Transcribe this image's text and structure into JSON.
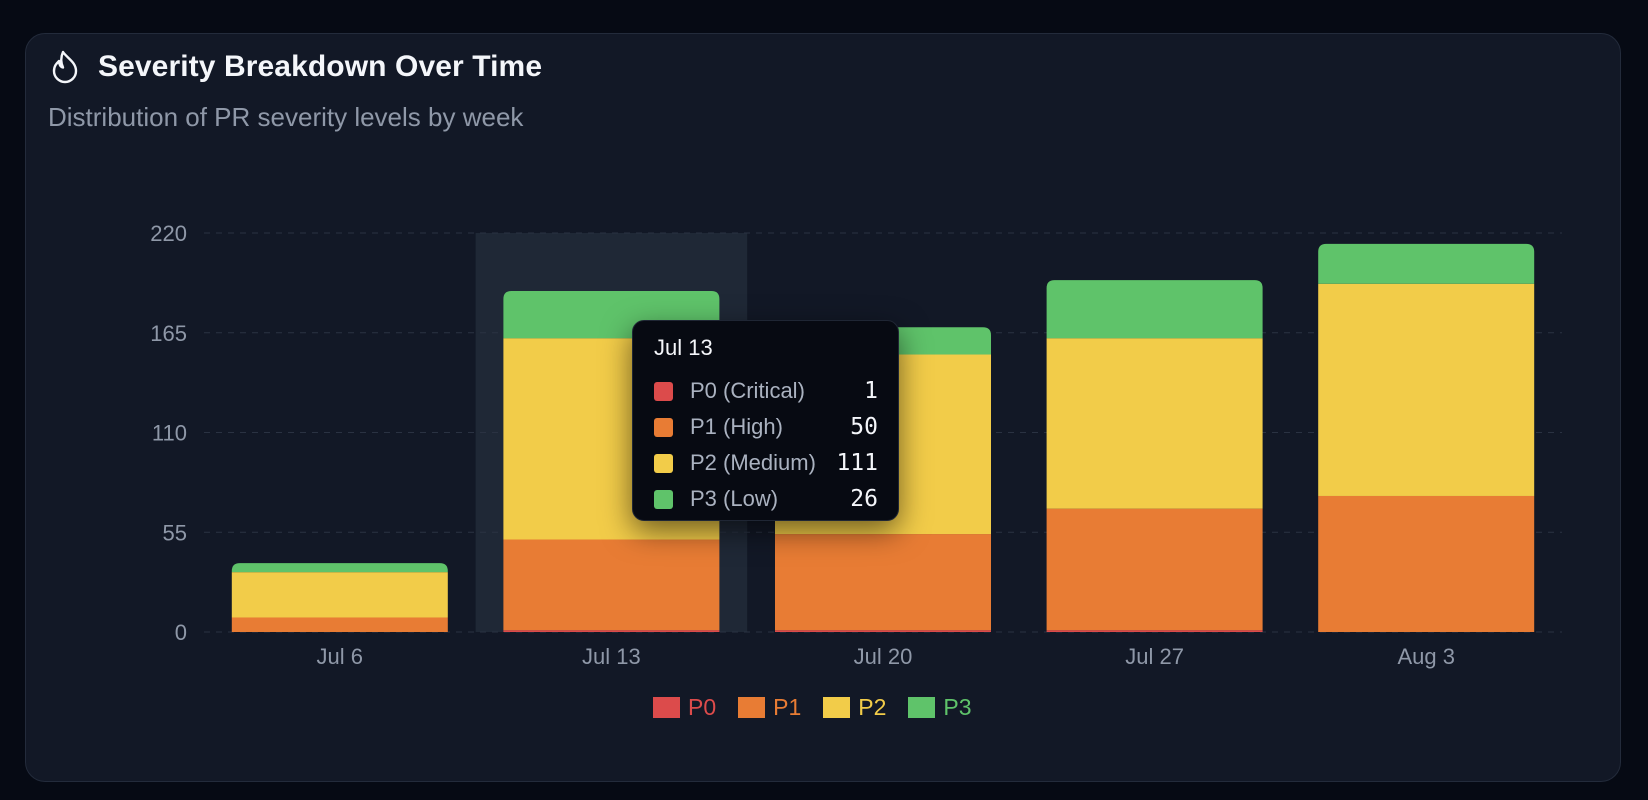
{
  "header": {
    "title": "Severity Breakdown Over Time",
    "subtitle": "Distribution of PR severity levels by week",
    "icon": "flame-icon"
  },
  "colors": {
    "P0": "#dc4b4b",
    "P1": "#e87c34",
    "P2": "#f2cc49",
    "P3": "#5fc36a",
    "background": "#060a14",
    "card": "#121826",
    "highlight": "#1f2836"
  },
  "chart_data": {
    "type": "bar",
    "stacked": true,
    "categories": [
      "Jul 6",
      "Jul 13",
      "Jul 20",
      "Jul 27",
      "Aug 3"
    ],
    "series": [
      {
        "key": "P0",
        "name": "P0",
        "values": [
          0,
          1,
          1,
          1,
          0
        ]
      },
      {
        "key": "P1",
        "name": "P1",
        "values": [
          8,
          50,
          53,
          67,
          75
        ]
      },
      {
        "key": "P2",
        "name": "P2",
        "values": [
          25,
          111,
          99,
          94,
          117
        ]
      },
      {
        "key": "P3",
        "name": "P3",
        "values": [
          5,
          26,
          15,
          32,
          22
        ]
      }
    ],
    "y_ticks": [
      0,
      55,
      110,
      165,
      220
    ],
    "ylim": [
      0,
      220
    ],
    "grid": true,
    "legend_position": "bottom-center",
    "highlighted_category": "Jul 13"
  },
  "tooltip": {
    "title": "Jul 13",
    "rows": [
      {
        "key": "P0",
        "label": "P0 (Critical)",
        "value": "1"
      },
      {
        "key": "P1",
        "label": "P1 (High)",
        "value": "50"
      },
      {
        "key": "P2",
        "label": "P2 (Medium)",
        "value": "111"
      },
      {
        "key": "P3",
        "label": "P3 (Low)",
        "value": "26"
      }
    ]
  },
  "legend": [
    {
      "key": "P0",
      "label": "P0"
    },
    {
      "key": "P1",
      "label": "P1"
    },
    {
      "key": "P2",
      "label": "P2"
    },
    {
      "key": "P3",
      "label": "P3"
    }
  ]
}
